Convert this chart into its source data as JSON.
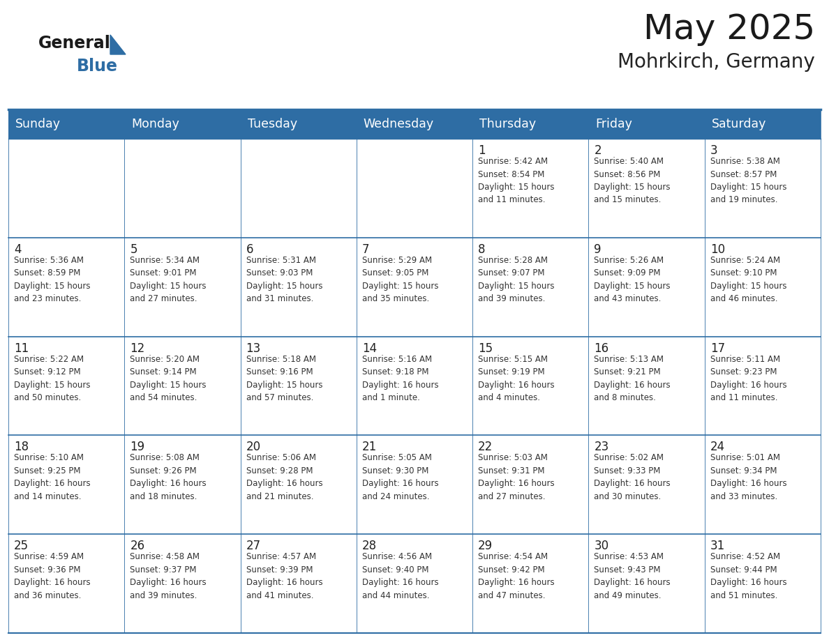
{
  "title": "May 2025",
  "subtitle": "Mohrkirch, Germany",
  "days_of_week": [
    "Sunday",
    "Monday",
    "Tuesday",
    "Wednesday",
    "Thursday",
    "Friday",
    "Saturday"
  ],
  "header_bg": "#2E6DA4",
  "header_text": "#FFFFFF",
  "cell_bg": "#FFFFFF",
  "cell_bg_alt": "#F0F4F8",
  "day_number_color": "#222222",
  "info_text_color": "#333333",
  "border_color": "#2E6DA4",
  "row_border_color": "#3a7bbf",
  "title_color": "#1a1a1a",
  "subtitle_color": "#222222",
  "logo_general_color": "#1a1a1a",
  "logo_blue_color": "#2E6DA4",
  "weeks": [
    [
      {
        "day": 0,
        "info": ""
      },
      {
        "day": 0,
        "info": ""
      },
      {
        "day": 0,
        "info": ""
      },
      {
        "day": 0,
        "info": ""
      },
      {
        "day": 1,
        "info": "Sunrise: 5:42 AM\nSunset: 8:54 PM\nDaylight: 15 hours\nand 11 minutes."
      },
      {
        "day": 2,
        "info": "Sunrise: 5:40 AM\nSunset: 8:56 PM\nDaylight: 15 hours\nand 15 minutes."
      },
      {
        "day": 3,
        "info": "Sunrise: 5:38 AM\nSunset: 8:57 PM\nDaylight: 15 hours\nand 19 minutes."
      }
    ],
    [
      {
        "day": 4,
        "info": "Sunrise: 5:36 AM\nSunset: 8:59 PM\nDaylight: 15 hours\nand 23 minutes."
      },
      {
        "day": 5,
        "info": "Sunrise: 5:34 AM\nSunset: 9:01 PM\nDaylight: 15 hours\nand 27 minutes."
      },
      {
        "day": 6,
        "info": "Sunrise: 5:31 AM\nSunset: 9:03 PM\nDaylight: 15 hours\nand 31 minutes."
      },
      {
        "day": 7,
        "info": "Sunrise: 5:29 AM\nSunset: 9:05 PM\nDaylight: 15 hours\nand 35 minutes."
      },
      {
        "day": 8,
        "info": "Sunrise: 5:28 AM\nSunset: 9:07 PM\nDaylight: 15 hours\nand 39 minutes."
      },
      {
        "day": 9,
        "info": "Sunrise: 5:26 AM\nSunset: 9:09 PM\nDaylight: 15 hours\nand 43 minutes."
      },
      {
        "day": 10,
        "info": "Sunrise: 5:24 AM\nSunset: 9:10 PM\nDaylight: 15 hours\nand 46 minutes."
      }
    ],
    [
      {
        "day": 11,
        "info": "Sunrise: 5:22 AM\nSunset: 9:12 PM\nDaylight: 15 hours\nand 50 minutes."
      },
      {
        "day": 12,
        "info": "Sunrise: 5:20 AM\nSunset: 9:14 PM\nDaylight: 15 hours\nand 54 minutes."
      },
      {
        "day": 13,
        "info": "Sunrise: 5:18 AM\nSunset: 9:16 PM\nDaylight: 15 hours\nand 57 minutes."
      },
      {
        "day": 14,
        "info": "Sunrise: 5:16 AM\nSunset: 9:18 PM\nDaylight: 16 hours\nand 1 minute."
      },
      {
        "day": 15,
        "info": "Sunrise: 5:15 AM\nSunset: 9:19 PM\nDaylight: 16 hours\nand 4 minutes."
      },
      {
        "day": 16,
        "info": "Sunrise: 5:13 AM\nSunset: 9:21 PM\nDaylight: 16 hours\nand 8 minutes."
      },
      {
        "day": 17,
        "info": "Sunrise: 5:11 AM\nSunset: 9:23 PM\nDaylight: 16 hours\nand 11 minutes."
      }
    ],
    [
      {
        "day": 18,
        "info": "Sunrise: 5:10 AM\nSunset: 9:25 PM\nDaylight: 16 hours\nand 14 minutes."
      },
      {
        "day": 19,
        "info": "Sunrise: 5:08 AM\nSunset: 9:26 PM\nDaylight: 16 hours\nand 18 minutes."
      },
      {
        "day": 20,
        "info": "Sunrise: 5:06 AM\nSunset: 9:28 PM\nDaylight: 16 hours\nand 21 minutes."
      },
      {
        "day": 21,
        "info": "Sunrise: 5:05 AM\nSunset: 9:30 PM\nDaylight: 16 hours\nand 24 minutes."
      },
      {
        "day": 22,
        "info": "Sunrise: 5:03 AM\nSunset: 9:31 PM\nDaylight: 16 hours\nand 27 minutes."
      },
      {
        "day": 23,
        "info": "Sunrise: 5:02 AM\nSunset: 9:33 PM\nDaylight: 16 hours\nand 30 minutes."
      },
      {
        "day": 24,
        "info": "Sunrise: 5:01 AM\nSunset: 9:34 PM\nDaylight: 16 hours\nand 33 minutes."
      }
    ],
    [
      {
        "day": 25,
        "info": "Sunrise: 4:59 AM\nSunset: 9:36 PM\nDaylight: 16 hours\nand 36 minutes."
      },
      {
        "day": 26,
        "info": "Sunrise: 4:58 AM\nSunset: 9:37 PM\nDaylight: 16 hours\nand 39 minutes."
      },
      {
        "day": 27,
        "info": "Sunrise: 4:57 AM\nSunset: 9:39 PM\nDaylight: 16 hours\nand 41 minutes."
      },
      {
        "day": 28,
        "info": "Sunrise: 4:56 AM\nSunset: 9:40 PM\nDaylight: 16 hours\nand 44 minutes."
      },
      {
        "day": 29,
        "info": "Sunrise: 4:54 AM\nSunset: 9:42 PM\nDaylight: 16 hours\nand 47 minutes."
      },
      {
        "day": 30,
        "info": "Sunrise: 4:53 AM\nSunset: 9:43 PM\nDaylight: 16 hours\nand 49 minutes."
      },
      {
        "day": 31,
        "info": "Sunrise: 4:52 AM\nSunset: 9:44 PM\nDaylight: 16 hours\nand 51 minutes."
      }
    ]
  ]
}
